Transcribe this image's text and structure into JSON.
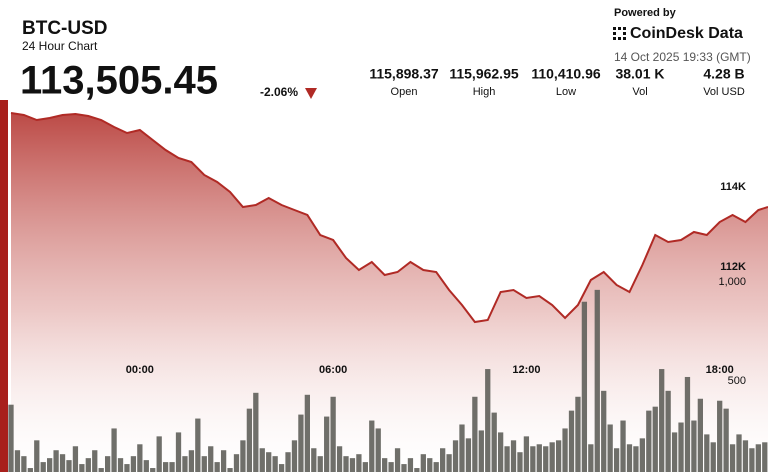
{
  "header": {
    "symbol": "BTC-USD",
    "subtitle": "24 Hour Chart",
    "price": "113,505.45",
    "change": "-2.06%"
  },
  "stats": [
    {
      "value": "115,898.37",
      "label": "Open"
    },
    {
      "value": "115,962.95",
      "label": "High"
    },
    {
      "value": "110,410.96",
      "label": "Low"
    },
    {
      "value": "38.01 K",
      "label": "Vol"
    },
    {
      "value": "4.28 B",
      "label": "Vol USD"
    }
  ],
  "branding": {
    "powered_by": "Powered by",
    "brand": "CoinDesk Data",
    "timestamp": "14 Oct 2025 19:33 (GMT)"
  },
  "chart_data": [
    {
      "type": "area",
      "color": "#b02a25",
      "x": [
        -4,
        -3.6,
        -3.2,
        -2.8,
        -2.4,
        -2,
        -1.6,
        -1.2,
        -0.8,
        -0.4,
        0,
        0.4,
        0.8,
        1.2,
        1.6,
        2,
        2.4,
        2.8,
        3.2,
        3.6,
        4,
        4.4,
        4.8,
        5.2,
        5.6,
        6,
        6.4,
        6.8,
        7.2,
        7.6,
        8,
        8.4,
        8.8,
        9.2,
        9.6,
        10,
        10.4,
        10.8,
        11.2,
        11.6,
        12,
        12.4,
        12.8,
        13.2,
        13.6,
        14,
        14.4,
        14.8,
        15.2,
        15.6,
        16,
        16.4,
        16.8,
        17.2,
        17.6,
        18,
        18.4,
        18.8,
        19.2,
        19.5
      ],
      "values": [
        115850,
        115800,
        115675,
        115725,
        115800,
        115825,
        115775,
        115675,
        115500,
        115350,
        115425,
        115175,
        114925,
        114725,
        114625,
        114300,
        114125,
        113875,
        113500,
        113550,
        113725,
        113550,
        113425,
        113300,
        112800,
        112675,
        112225,
        111925,
        112125,
        111800,
        111875,
        112125,
        111925,
        111875,
        111425,
        111050,
        110625,
        110675,
        111375,
        111425,
        111225,
        111275,
        111050,
        110725,
        111050,
        111675,
        111875,
        111550,
        111375,
        112050,
        112800,
        112625,
        112675,
        112875,
        112800,
        113125,
        113300,
        113125,
        113425,
        113500
      ],
      "xlim": [
        -4,
        19.5
      ],
      "xticks": [
        {
          "value": 0,
          "label": "00:00"
        },
        {
          "value": 6,
          "label": "06:00"
        },
        {
          "value": 12,
          "label": "12:00"
        },
        {
          "value": 18,
          "label": "18:00"
        }
      ],
      "ylim": [
        106875,
        116175
      ],
      "yticks": [
        {
          "value": 112000,
          "label": "112K"
        },
        {
          "value": 114000,
          "label": "114K"
        }
      ]
    },
    {
      "type": "bar",
      "color": "#5f5f5a",
      "x": [
        -4,
        -3.8,
        -3.6,
        -3.4,
        -3.2,
        -3,
        -2.8,
        -2.6,
        -2.4,
        -2.2,
        -2,
        -1.8,
        -1.6,
        -1.4,
        -1.2,
        -1,
        -0.8,
        -0.6,
        -0.4,
        -0.2,
        0,
        0.2,
        0.4,
        0.6,
        0.8,
        1,
        1.2,
        1.4,
        1.6,
        1.8,
        2,
        2.2,
        2.4,
        2.6,
        2.8,
        3,
        3.2,
        3.4,
        3.6,
        3.8,
        4,
        4.2,
        4.4,
        4.6,
        4.8,
        5,
        5.2,
        5.4,
        5.6,
        5.8,
        6,
        6.2,
        6.4,
        6.6,
        6.8,
        7,
        7.2,
        7.4,
        7.6,
        7.8,
        8,
        8.2,
        8.4,
        8.6,
        8.8,
        9,
        9.2,
        9.4,
        9.6,
        9.8,
        10,
        10.2,
        10.4,
        10.6,
        10.8,
        11,
        11.2,
        11.4,
        11.6,
        11.8,
        12,
        12.2,
        12.4,
        12.6,
        12.8,
        13,
        13.2,
        13.4,
        13.6,
        13.8,
        14,
        14.2,
        14.4,
        14.6,
        14.8,
        15,
        15.2,
        15.4,
        15.6,
        15.8,
        16,
        16.2,
        16.4,
        16.6,
        16.8,
        17,
        17.2,
        17.4,
        17.6,
        17.8,
        18,
        18.2,
        18.4,
        18.6,
        18.8,
        19,
        19.2,
        19.4
      ],
      "values": [
        380,
        150,
        120,
        60,
        200,
        90,
        110,
        150,
        130,
        100,
        170,
        80,
        110,
        150,
        60,
        120,
        260,
        110,
        80,
        120,
        180,
        100,
        60,
        220,
        90,
        90,
        240,
        120,
        150,
        310,
        120,
        170,
        90,
        150,
        60,
        130,
        200,
        360,
        440,
        160,
        140,
        120,
        80,
        140,
        200,
        330,
        430,
        160,
        120,
        320,
        420,
        170,
        120,
        110,
        130,
        90,
        300,
        260,
        110,
        90,
        160,
        80,
        110,
        60,
        130,
        110,
        90,
        160,
        130,
        200,
        280,
        210,
        420,
        250,
        560,
        340,
        240,
        170,
        200,
        140,
        220,
        170,
        180,
        170,
        190,
        200,
        260,
        350,
        420,
        900,
        180,
        960,
        450,
        280,
        160,
        300,
        180,
        170,
        210,
        350,
        370,
        560,
        450,
        240,
        290,
        520,
        300,
        410,
        230,
        190,
        400,
        360,
        180,
        230,
        200,
        160,
        180,
        190
      ],
      "xlim": [
        -4,
        19.5
      ],
      "ylim": [
        40,
        1919
      ],
      "yticks": [
        {
          "value": 500,
          "label": "500"
        },
        {
          "value": 1000,
          "label": "1,000"
        }
      ]
    }
  ]
}
